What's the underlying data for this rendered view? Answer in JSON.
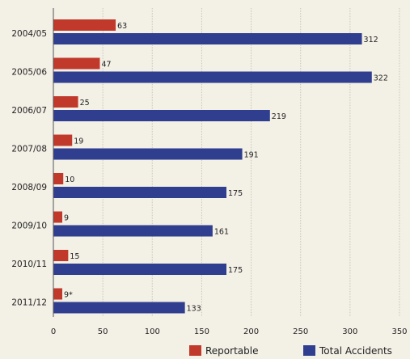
{
  "chart_data": {
    "type": "bar",
    "orientation": "horizontal",
    "categories": [
      "2004/05",
      "2005/06",
      "2006/07",
      "2007/08",
      "2008/09",
      "2009/10",
      "2010/11",
      "2011/12"
    ],
    "series": [
      {
        "name": "Reportable",
        "color": "#c0392b",
        "values": [
          63,
          47,
          25,
          19,
          10,
          9,
          15,
          9
        ],
        "labels": [
          "63",
          "47",
          "25",
          "19",
          "10",
          "9",
          "15",
          "9*"
        ]
      },
      {
        "name": "Total Accidents",
        "color": "#2f3e8f",
        "values": [
          312,
          322,
          219,
          191,
          175,
          161,
          175,
          133
        ],
        "labels": [
          "312",
          "322",
          "219",
          "191",
          "175",
          "161",
          "175",
          "133"
        ]
      }
    ],
    "xlim": [
      0,
      350
    ],
    "xticks": [
      "0",
      "50",
      "100",
      "150",
      "200",
      "250",
      "300",
      "350"
    ],
    "grid": true,
    "legend_position": "bottom-right"
  }
}
